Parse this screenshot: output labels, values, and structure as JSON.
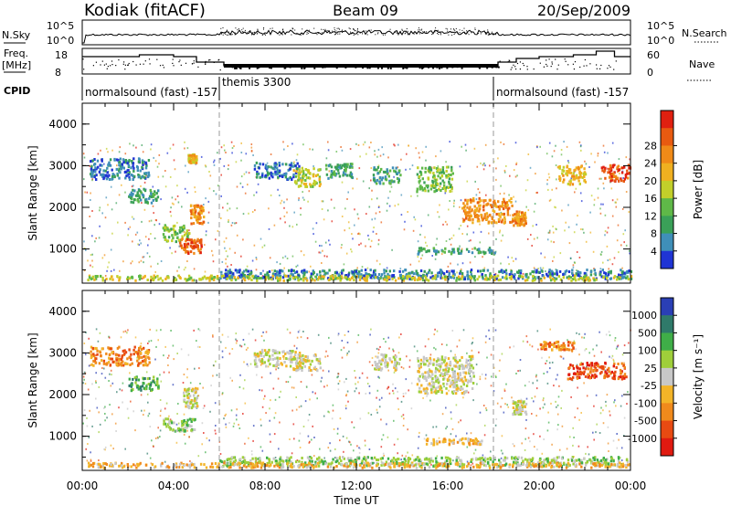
{
  "header": {
    "station": "Kodiak (fitACF)",
    "beam": "Beam 09",
    "date": "20/Sep/2009"
  },
  "strips": {
    "nsky_label": "N.Sky",
    "nsky_ticks": [
      "10^5",
      "10^0"
    ],
    "nsearch_label": "N.Search",
    "nsearch_ticks": [
      "10^5",
      "10^0"
    ],
    "freq_label": "Freq.",
    "freq_unit": "[MHz]",
    "freq_ticks": [
      "18",
      "8"
    ],
    "nave_label": "Nave",
    "nave_ticks": [
      "60",
      "0"
    ],
    "cpid_label": "CPID",
    "cpid_segments": [
      {
        "label": "normalsound (fast) -157",
        "start_hour": 0,
        "end_hour": 6
      },
      {
        "label": "themis 3300",
        "start_hour": 6,
        "end_hour": 18
      },
      {
        "label": "normalsound (fast) -157",
        "start_hour": 18,
        "end_hour": 24
      }
    ]
  },
  "colors": {
    "power": [
      "#1f34d4",
      "#3f8fb8",
      "#3aa058",
      "#5fb848",
      "#c2cf2a",
      "#f0b020",
      "#f08a18",
      "#e85a10",
      "#e02010"
    ],
    "velocity": [
      "#2a3fb5",
      "#2f7a6a",
      "#3fae48",
      "#9fcf3a",
      "#c8c8c8",
      "#f3b428",
      "#f08a1c",
      "#e84a12",
      "#e01a10"
    ]
  },
  "chart_data": [
    {
      "type": "heatmap",
      "name": "power",
      "ylabel": "Slant Range [km]",
      "xlabel": "Time UT",
      "x_ticks": [
        "00:00",
        "04:00",
        "08:00",
        "12:00",
        "16:00",
        "20:00",
        "00:00"
      ],
      "xlim_hours": [
        0,
        24
      ],
      "ylim_km": [
        180,
        4500
      ],
      "y_ticks": [
        1000,
        2000,
        3000,
        4000
      ],
      "colorbar_label": "Power [dB]",
      "colorbar_ticks": [
        "4",
        "8",
        "12",
        "16",
        "20",
        "24",
        "28"
      ],
      "blobs": [
        {
          "t": 0.3,
          "r": 2950,
          "dt": 2.6,
          "dr": 500,
          "lvl": 1
        },
        {
          "t": 2.0,
          "r": 2300,
          "dt": 1.3,
          "dr": 350,
          "lvl": 2
        },
        {
          "t": 3.5,
          "r": 1400,
          "dt": 1.2,
          "dr": 400,
          "lvl": 3
        },
        {
          "t": 4.2,
          "r": 1100,
          "dt": 1.0,
          "dr": 350,
          "lvl": 7
        },
        {
          "t": 4.7,
          "r": 1850,
          "dt": 0.6,
          "dr": 450,
          "lvl": 6
        },
        {
          "t": 4.6,
          "r": 3200,
          "dt": 0.4,
          "dr": 200,
          "lvl": 5
        },
        {
          "t": 7.5,
          "r": 2900,
          "dt": 2.0,
          "dr": 400,
          "lvl": 1
        },
        {
          "t": 9.2,
          "r": 2750,
          "dt": 1.2,
          "dr": 450,
          "lvl": 4
        },
        {
          "t": 10.6,
          "r": 2900,
          "dt": 1.2,
          "dr": 350,
          "lvl": 2
        },
        {
          "t": 12.7,
          "r": 2800,
          "dt": 1.2,
          "dr": 400,
          "lvl": 2
        },
        {
          "t": 14.6,
          "r": 2700,
          "dt": 1.6,
          "dr": 600,
          "lvl": 3
        },
        {
          "t": 16.6,
          "r": 1950,
          "dt": 2.2,
          "dr": 600,
          "lvl": 6
        },
        {
          "t": 14.6,
          "r": 980,
          "dt": 3.5,
          "dr": 150,
          "lvl": 2
        },
        {
          "t": 18.8,
          "r": 1750,
          "dt": 0.6,
          "dr": 350,
          "lvl": 6
        },
        {
          "t": 20.8,
          "r": 2800,
          "dt": 1.2,
          "dr": 450,
          "lvl": 5
        },
        {
          "t": 22.7,
          "r": 2850,
          "dt": 1.4,
          "dr": 400,
          "lvl": 7
        },
        {
          "t": 6.0,
          "r": 420,
          "dt": 18.0,
          "dr": 220,
          "lvl": 1
        },
        {
          "t": 0.2,
          "r": 330,
          "dt": 23.8,
          "dr": 120,
          "lvl": 4
        }
      ]
    },
    {
      "type": "heatmap",
      "name": "velocity",
      "ylabel": "Slant Range [km]",
      "xlabel": "Time UT",
      "x_ticks": [
        "00:00",
        "04:00",
        "08:00",
        "12:00",
        "16:00",
        "20:00",
        "00:00"
      ],
      "xlim_hours": [
        0,
        24
      ],
      "ylim_km": [
        180,
        4500
      ],
      "y_ticks": [
        1000,
        2000,
        3000,
        4000
      ],
      "colorbar_label": "Velocity [m s⁻¹]",
      "colorbar_ticks": [
        "1000",
        "500",
        "100",
        "25",
        "-25",
        "-100",
        "-500",
        "-1000"
      ],
      "blobs": [
        {
          "t": 0.3,
          "r": 2950,
          "dt": 2.6,
          "dr": 450,
          "lvl": 6
        },
        {
          "t": 2.0,
          "r": 2300,
          "dt": 1.3,
          "dr": 350,
          "lvl": 2
        },
        {
          "t": 3.5,
          "r": 1300,
          "dt": 1.4,
          "dr": 300,
          "lvl": 3
        },
        {
          "t": 4.4,
          "r": 1950,
          "dt": 0.6,
          "dr": 500,
          "lvl": 4
        },
        {
          "t": 7.5,
          "r": 2900,
          "dt": 2.0,
          "dr": 400,
          "lvl": 4
        },
        {
          "t": 9.2,
          "r": 2800,
          "dt": 1.2,
          "dr": 400,
          "lvl": 4
        },
        {
          "t": 12.7,
          "r": 2800,
          "dt": 1.2,
          "dr": 400,
          "lvl": 4
        },
        {
          "t": 14.6,
          "r": 2500,
          "dt": 2.5,
          "dr": 900,
          "lvl": 4
        },
        {
          "t": 15.0,
          "r": 900,
          "dt": 2.5,
          "dr": 150,
          "lvl": 5
        },
        {
          "t": 18.8,
          "r": 1700,
          "dt": 0.6,
          "dr": 350,
          "lvl": 4
        },
        {
          "t": 20.0,
          "r": 3200,
          "dt": 1.5,
          "dr": 200,
          "lvl": 6
        },
        {
          "t": 21.2,
          "r": 2600,
          "dt": 2.6,
          "dr": 400,
          "lvl": 7
        },
        {
          "t": 6.0,
          "r": 420,
          "dt": 18.0,
          "dr": 220,
          "lvl": 3
        },
        {
          "t": 0.2,
          "r": 330,
          "dt": 23.8,
          "dr": 120,
          "lvl": 5
        }
      ]
    }
  ]
}
